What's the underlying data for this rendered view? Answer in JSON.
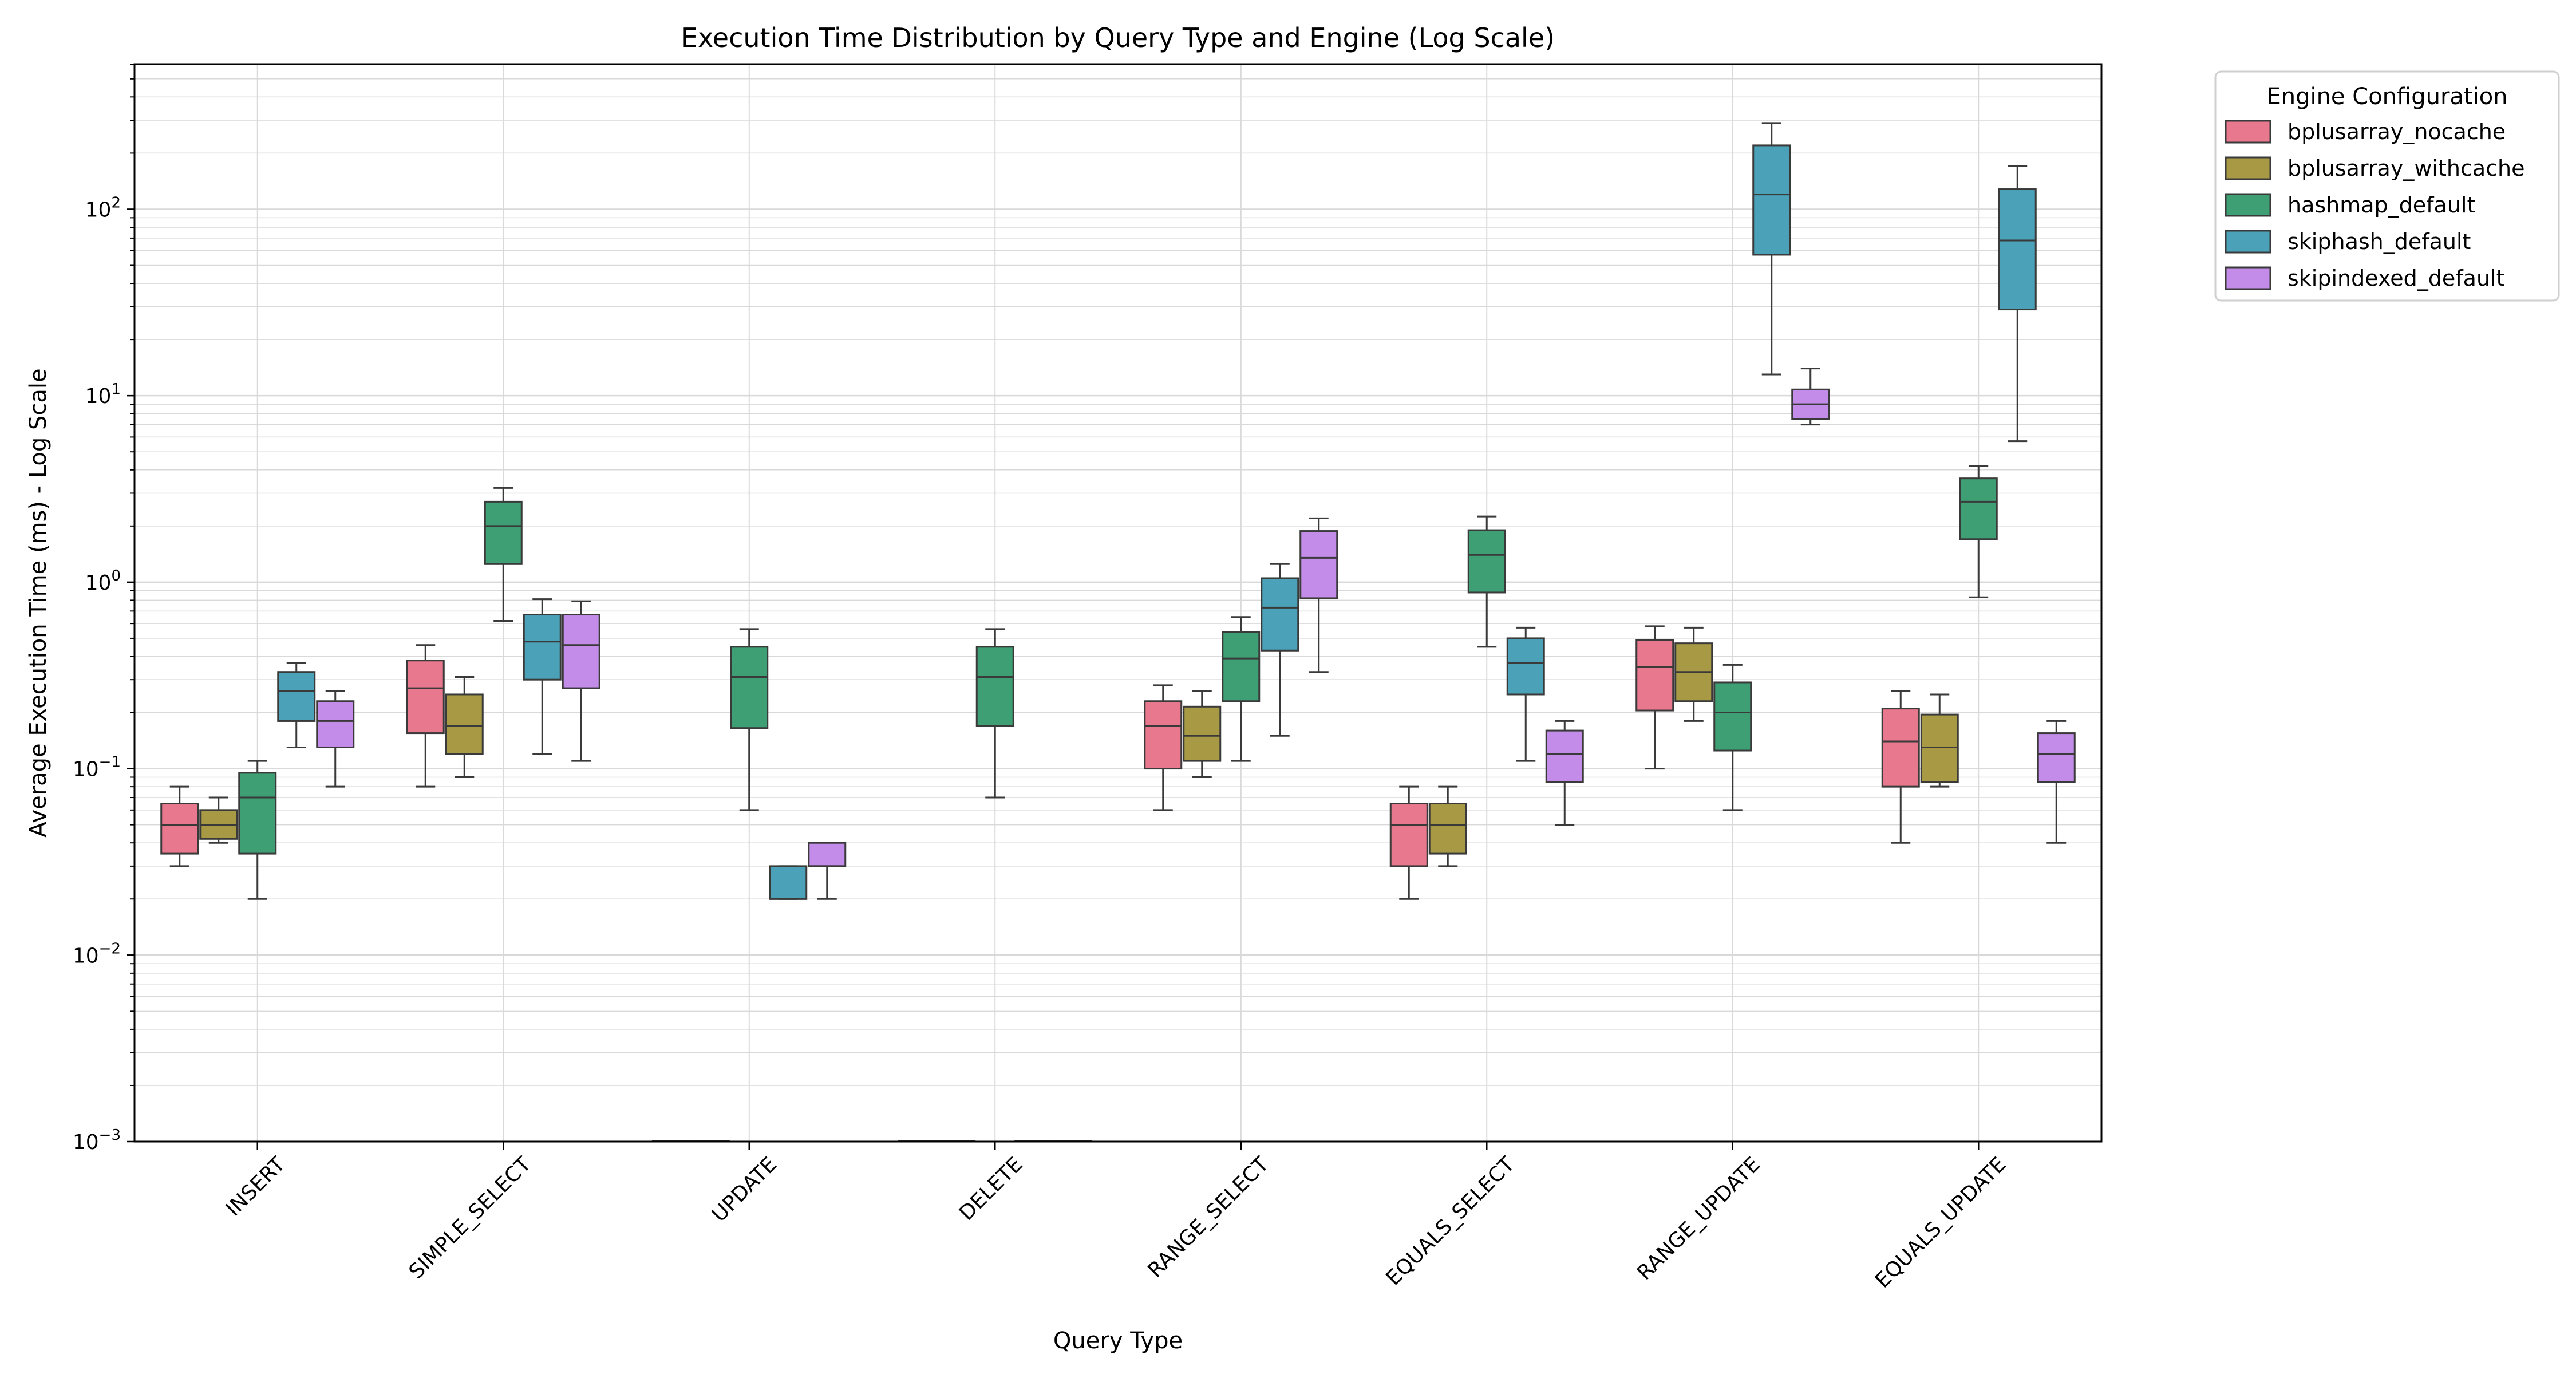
{
  "chart_data": {
    "type": "box",
    "title": "Execution Time Distribution by Query Type and Engine (Log Scale)",
    "xlabel": "Query Type",
    "ylabel": "Average Execution Time (ms) - Log Scale",
    "yscale": "log",
    "ylim": [
      0.001,
      600
    ],
    "grid": true,
    "legend_title": "Engine Configuration",
    "legend_position": "outside-top-right",
    "categories": [
      "INSERT",
      "SIMPLE_SELECT",
      "UPDATE",
      "DELETE",
      "RANGE_SELECT",
      "EQUALS_SELECT",
      "RANGE_UPDATE",
      "EQUALS_UPDATE"
    ],
    "yticks": [
      {
        "value": 0.001,
        "base": "10",
        "exp": "−3"
      },
      {
        "value": 0.01,
        "base": "10",
        "exp": "−2"
      },
      {
        "value": 0.1,
        "base": "10",
        "exp": "−1"
      },
      {
        "value": 1,
        "base": "10",
        "exp": "0"
      },
      {
        "value": 10,
        "base": "10",
        "exp": "1"
      },
      {
        "value": 100,
        "base": "10",
        "exp": "2"
      }
    ],
    "series": [
      {
        "name": "bplusarray_nocache",
        "color": "#e8788d",
        "boxes": [
          {
            "min": 0.03,
            "q1": 0.035,
            "median": 0.05,
            "q3": 0.065,
            "max": 0.08
          },
          {
            "min": 0.08,
            "q1": 0.155,
            "median": 0.27,
            "q3": 0.38,
            "max": 0.46
          },
          null,
          null,
          {
            "min": 0.06,
            "q1": 0.1,
            "median": 0.17,
            "q3": 0.23,
            "max": 0.28
          },
          {
            "min": 0.02,
            "q1": 0.03,
            "median": 0.05,
            "q3": 0.065,
            "max": 0.08
          },
          {
            "min": 0.1,
            "q1": 0.205,
            "median": 0.35,
            "q3": 0.49,
            "max": 0.58
          },
          {
            "min": 0.04,
            "q1": 0.08,
            "median": 0.14,
            "q3": 0.21,
            "max": 0.26
          }
        ]
      },
      {
        "name": "bplusarray_withcache",
        "color": "#a89a45",
        "boxes": [
          {
            "min": 0.04,
            "q1": 0.042,
            "median": 0.05,
            "q3": 0.06,
            "max": 0.07
          },
          {
            "min": 0.09,
            "q1": 0.12,
            "median": 0.17,
            "q3": 0.25,
            "max": 0.31
          },
          null,
          null,
          {
            "min": 0.09,
            "q1": 0.11,
            "median": 0.15,
            "q3": 0.215,
            "max": 0.26
          },
          {
            "min": 0.03,
            "q1": 0.035,
            "median": 0.05,
            "q3": 0.065,
            "max": 0.08
          },
          {
            "min": 0.18,
            "q1": 0.23,
            "median": 0.33,
            "q3": 0.47,
            "max": 0.57
          },
          {
            "min": 0.08,
            "q1": 0.085,
            "median": 0.13,
            "q3": 0.195,
            "max": 0.25
          }
        ]
      },
      {
        "name": "hashmap_default",
        "color": "#3d9f73",
        "boxes": [
          {
            "min": 0.02,
            "q1": 0.035,
            "median": 0.07,
            "q3": 0.095,
            "max": 0.11
          },
          {
            "min": 0.62,
            "q1": 1.25,
            "median": 2.0,
            "q3": 2.7,
            "max": 3.2
          },
          {
            "min": 0.06,
            "q1": 0.165,
            "median": 0.31,
            "q3": 0.45,
            "max": 0.56
          },
          {
            "min": 0.07,
            "q1": 0.17,
            "median": 0.31,
            "q3": 0.45,
            "max": 0.56
          },
          {
            "min": 0.11,
            "q1": 0.23,
            "median": 0.39,
            "q3": 0.54,
            "max": 0.65
          },
          {
            "min": 0.45,
            "q1": 0.88,
            "median": 1.4,
            "q3": 1.9,
            "max": 2.25
          },
          {
            "min": 0.06,
            "q1": 0.125,
            "median": 0.2,
            "q3": 0.29,
            "max": 0.36
          },
          {
            "min": 0.83,
            "q1": 1.7,
            "median": 2.7,
            "q3": 3.6,
            "max": 4.2
          }
        ]
      },
      {
        "name": "skiphash_default",
        "color": "#4ba1b8",
        "boxes": [
          {
            "min": 0.13,
            "q1": 0.18,
            "median": 0.26,
            "q3": 0.33,
            "max": 0.37
          },
          {
            "min": 0.12,
            "q1": 0.3,
            "median": 0.48,
            "q3": 0.67,
            "max": 0.81
          },
          {
            "min": 0.02,
            "q1": 0.02,
            "median": 0.02,
            "q3": 0.03,
            "max": 0.03
          },
          null,
          {
            "min": 0.15,
            "q1": 0.43,
            "median": 0.73,
            "q3": 1.05,
            "max": 1.25
          },
          {
            "min": 0.11,
            "q1": 0.25,
            "median": 0.37,
            "q3": 0.5,
            "max": 0.57
          },
          {
            "min": 13,
            "q1": 57,
            "median": 120,
            "q3": 220,
            "max": 290
          },
          {
            "min": 5.7,
            "q1": 29,
            "median": 68,
            "q3": 128,
            "max": 170
          }
        ]
      },
      {
        "name": "skipindexed_default",
        "color": "#c28ce8",
        "boxes": [
          {
            "min": 0.08,
            "q1": 0.13,
            "median": 0.18,
            "q3": 0.23,
            "max": 0.26
          },
          {
            "min": 0.11,
            "q1": 0.27,
            "median": 0.46,
            "q3": 0.67,
            "max": 0.79
          },
          {
            "min": 0.02,
            "q1": 0.03,
            "median": 0.03,
            "q3": 0.04,
            "max": 0.04
          },
          null,
          {
            "min": 0.33,
            "q1": 0.82,
            "median": 1.35,
            "q3": 1.88,
            "max": 2.2
          },
          {
            "min": 0.05,
            "q1": 0.085,
            "median": 0.12,
            "q3": 0.16,
            "max": 0.18
          },
          {
            "min": 7.0,
            "q1": 7.5,
            "median": 9.0,
            "q3": 10.8,
            "max": 14.0
          },
          {
            "min": 0.04,
            "q1": 0.085,
            "median": 0.12,
            "q3": 0.155,
            "max": 0.18
          }
        ]
      }
    ]
  }
}
